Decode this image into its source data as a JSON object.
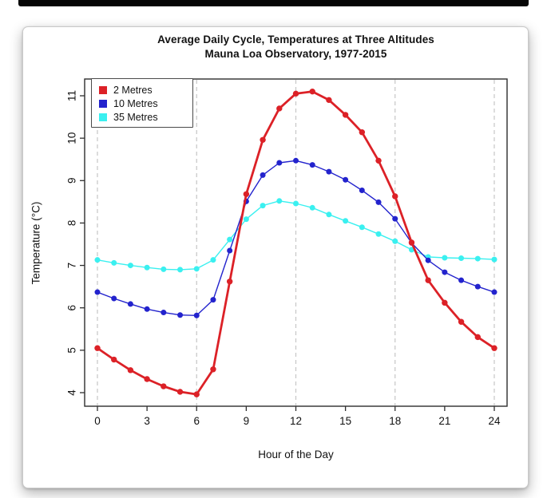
{
  "window": {
    "top_bar_color": "#060606",
    "card_background": "#ffffff"
  },
  "chart_data": {
    "type": "line",
    "title": "Average Daily Cycle, Temperatures at Three Altitudes",
    "subtitle": "Mauna Loa Observatory, 1977-2015",
    "xlabel": "Hour of the Day",
    "ylabel": "Temperature (°C)",
    "x_axis": {
      "ticks": [
        0,
        3,
        6,
        9,
        12,
        15,
        18,
        21,
        24
      ],
      "range": [
        -0.8,
        24.8
      ]
    },
    "y_axis": {
      "ticks": [
        4,
        5,
        6,
        7,
        8,
        9,
        10,
        11
      ],
      "range": [
        3.7,
        11.4
      ]
    },
    "grid": {
      "style": "vertical-dashed",
      "at_hours": [
        0,
        6,
        12,
        18,
        24
      ],
      "color": "#c6c6c6"
    },
    "hours": [
      0,
      1,
      2,
      3,
      4,
      5,
      6,
      7,
      8,
      9,
      10,
      11,
      12,
      13,
      14,
      15,
      16,
      17,
      18,
      19,
      20,
      21,
      22,
      23,
      24
    ],
    "series": [
      {
        "name": "2 Metres",
        "color": "#dc2127",
        "line_width": 2.8,
        "marker_radius": 3.7,
        "values": [
          5.05,
          4.78,
          4.53,
          4.32,
          4.15,
          4.02,
          3.96,
          4.55,
          6.62,
          8.68,
          9.96,
          10.7,
          11.05,
          11.1,
          10.9,
          10.55,
          10.14,
          9.47,
          8.63,
          7.54,
          6.65,
          6.12,
          5.67,
          5.31,
          5.05
        ]
      },
      {
        "name": "10 Metres",
        "color": "#2323cd",
        "line_width": 1.4,
        "marker_radius": 3.5,
        "values": [
          6.37,
          6.22,
          6.09,
          5.97,
          5.89,
          5.83,
          5.82,
          6.19,
          7.35,
          8.51,
          9.13,
          9.42,
          9.47,
          9.37,
          9.21,
          9.02,
          8.77,
          8.49,
          8.1,
          7.53,
          7.12,
          6.84,
          6.65,
          6.5,
          6.37
        ]
      },
      {
        "name": "35 Metres",
        "color": "#3af0f0",
        "line_width": 1.4,
        "marker_radius": 3.5,
        "values": [
          7.13,
          7.06,
          7.0,
          6.95,
          6.91,
          6.9,
          6.92,
          7.13,
          7.61,
          8.09,
          8.41,
          8.52,
          8.46,
          8.36,
          8.2,
          8.05,
          7.9,
          7.74,
          7.57,
          7.37,
          7.2,
          7.18,
          7.17,
          7.16,
          7.14
        ]
      }
    ],
    "legend": {
      "position": "top-left"
    }
  }
}
